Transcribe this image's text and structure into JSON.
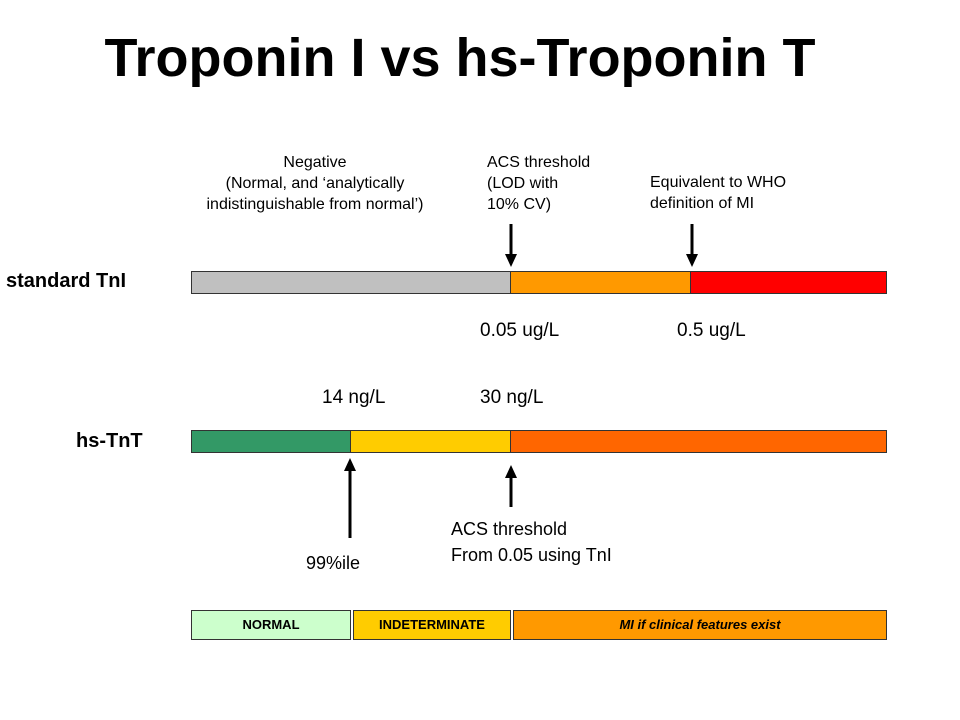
{
  "title": "Troponin I vs hs-Troponin T",
  "notes": {
    "negative": [
      "Negative",
      "(Normal, and ‘analytically",
      "indistinguishable from normal’)"
    ],
    "acs_top": [
      "ACS threshold",
      "(LOD with",
      "10% CV)"
    ],
    "who": [
      "Equivalent to WHO",
      "definition of MI"
    ],
    "acs_bottom": [
      "ACS threshold",
      "From 0.05 using TnI"
    ],
    "percentile": "99%ile"
  },
  "rows": {
    "standard": {
      "label": "standard TnI",
      "values": [
        "0.05 ug/L",
        "0.5 ug/L"
      ],
      "colors": [
        "#c0c0c0",
        "#ff9900",
        "#ff0000"
      ]
    },
    "hs": {
      "label": "hs-TnT",
      "values": [
        "14 ng/L",
        "30 ng/L"
      ],
      "colors": [
        "#339966",
        "#ffcc00",
        "#ff6600"
      ]
    }
  },
  "categories": [
    {
      "label": "NORMAL",
      "color": "#ccffcc"
    },
    {
      "label": "INDETERMINATE",
      "color": "#ffcc00"
    },
    {
      "label": "MI if clinical features exist",
      "color": "#ff9900"
    }
  ]
}
